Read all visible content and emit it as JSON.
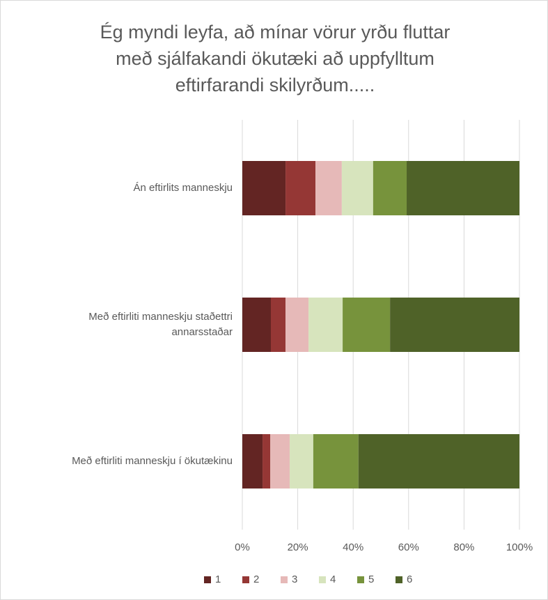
{
  "chart_data": {
    "type": "stacked-barh",
    "title": [
      "Ég myndi leyfa, að mínar vörur yrðu fluttar",
      "með sjálfakandi ökutæki að uppfylltum",
      "eftirfarandi skilyrðum....."
    ],
    "categories": [
      "Án eftirlits manneskju",
      "Með eftirliti manneskju staðettri annarsstaðar",
      "Með eftirliti manneskju í ökutækinu"
    ],
    "series": [
      {
        "name": "1",
        "color": "#632523",
        "values": [
          15.6,
          10.3,
          7.3
        ]
      },
      {
        "name": "2",
        "color": "#953735",
        "values": [
          10.8,
          5.3,
          2.8
        ]
      },
      {
        "name": "3",
        "color": "#e6b9b8",
        "values": [
          9.5,
          8.3,
          7.0
        ]
      },
      {
        "name": "4",
        "color": "#d7e4bd",
        "values": [
          11.3,
          12.3,
          8.5
        ]
      },
      {
        "name": "5",
        "color": "#77933c",
        "values": [
          12.1,
          17.1,
          16.3
        ]
      },
      {
        "name": "6",
        "color": "#4f6228",
        "values": [
          40.7,
          46.7,
          58.1
        ]
      }
    ],
    "xlim": [
      0,
      100
    ],
    "xticks": [
      {
        "value": 0,
        "label": "0%"
      },
      {
        "value": 20,
        "label": "20%"
      },
      {
        "value": 40,
        "label": "40%"
      },
      {
        "value": 60,
        "label": "60%"
      },
      {
        "value": 80,
        "label": "80%"
      },
      {
        "value": 100,
        "label": "100%"
      }
    ],
    "grid": true,
    "legend": "bottom"
  }
}
